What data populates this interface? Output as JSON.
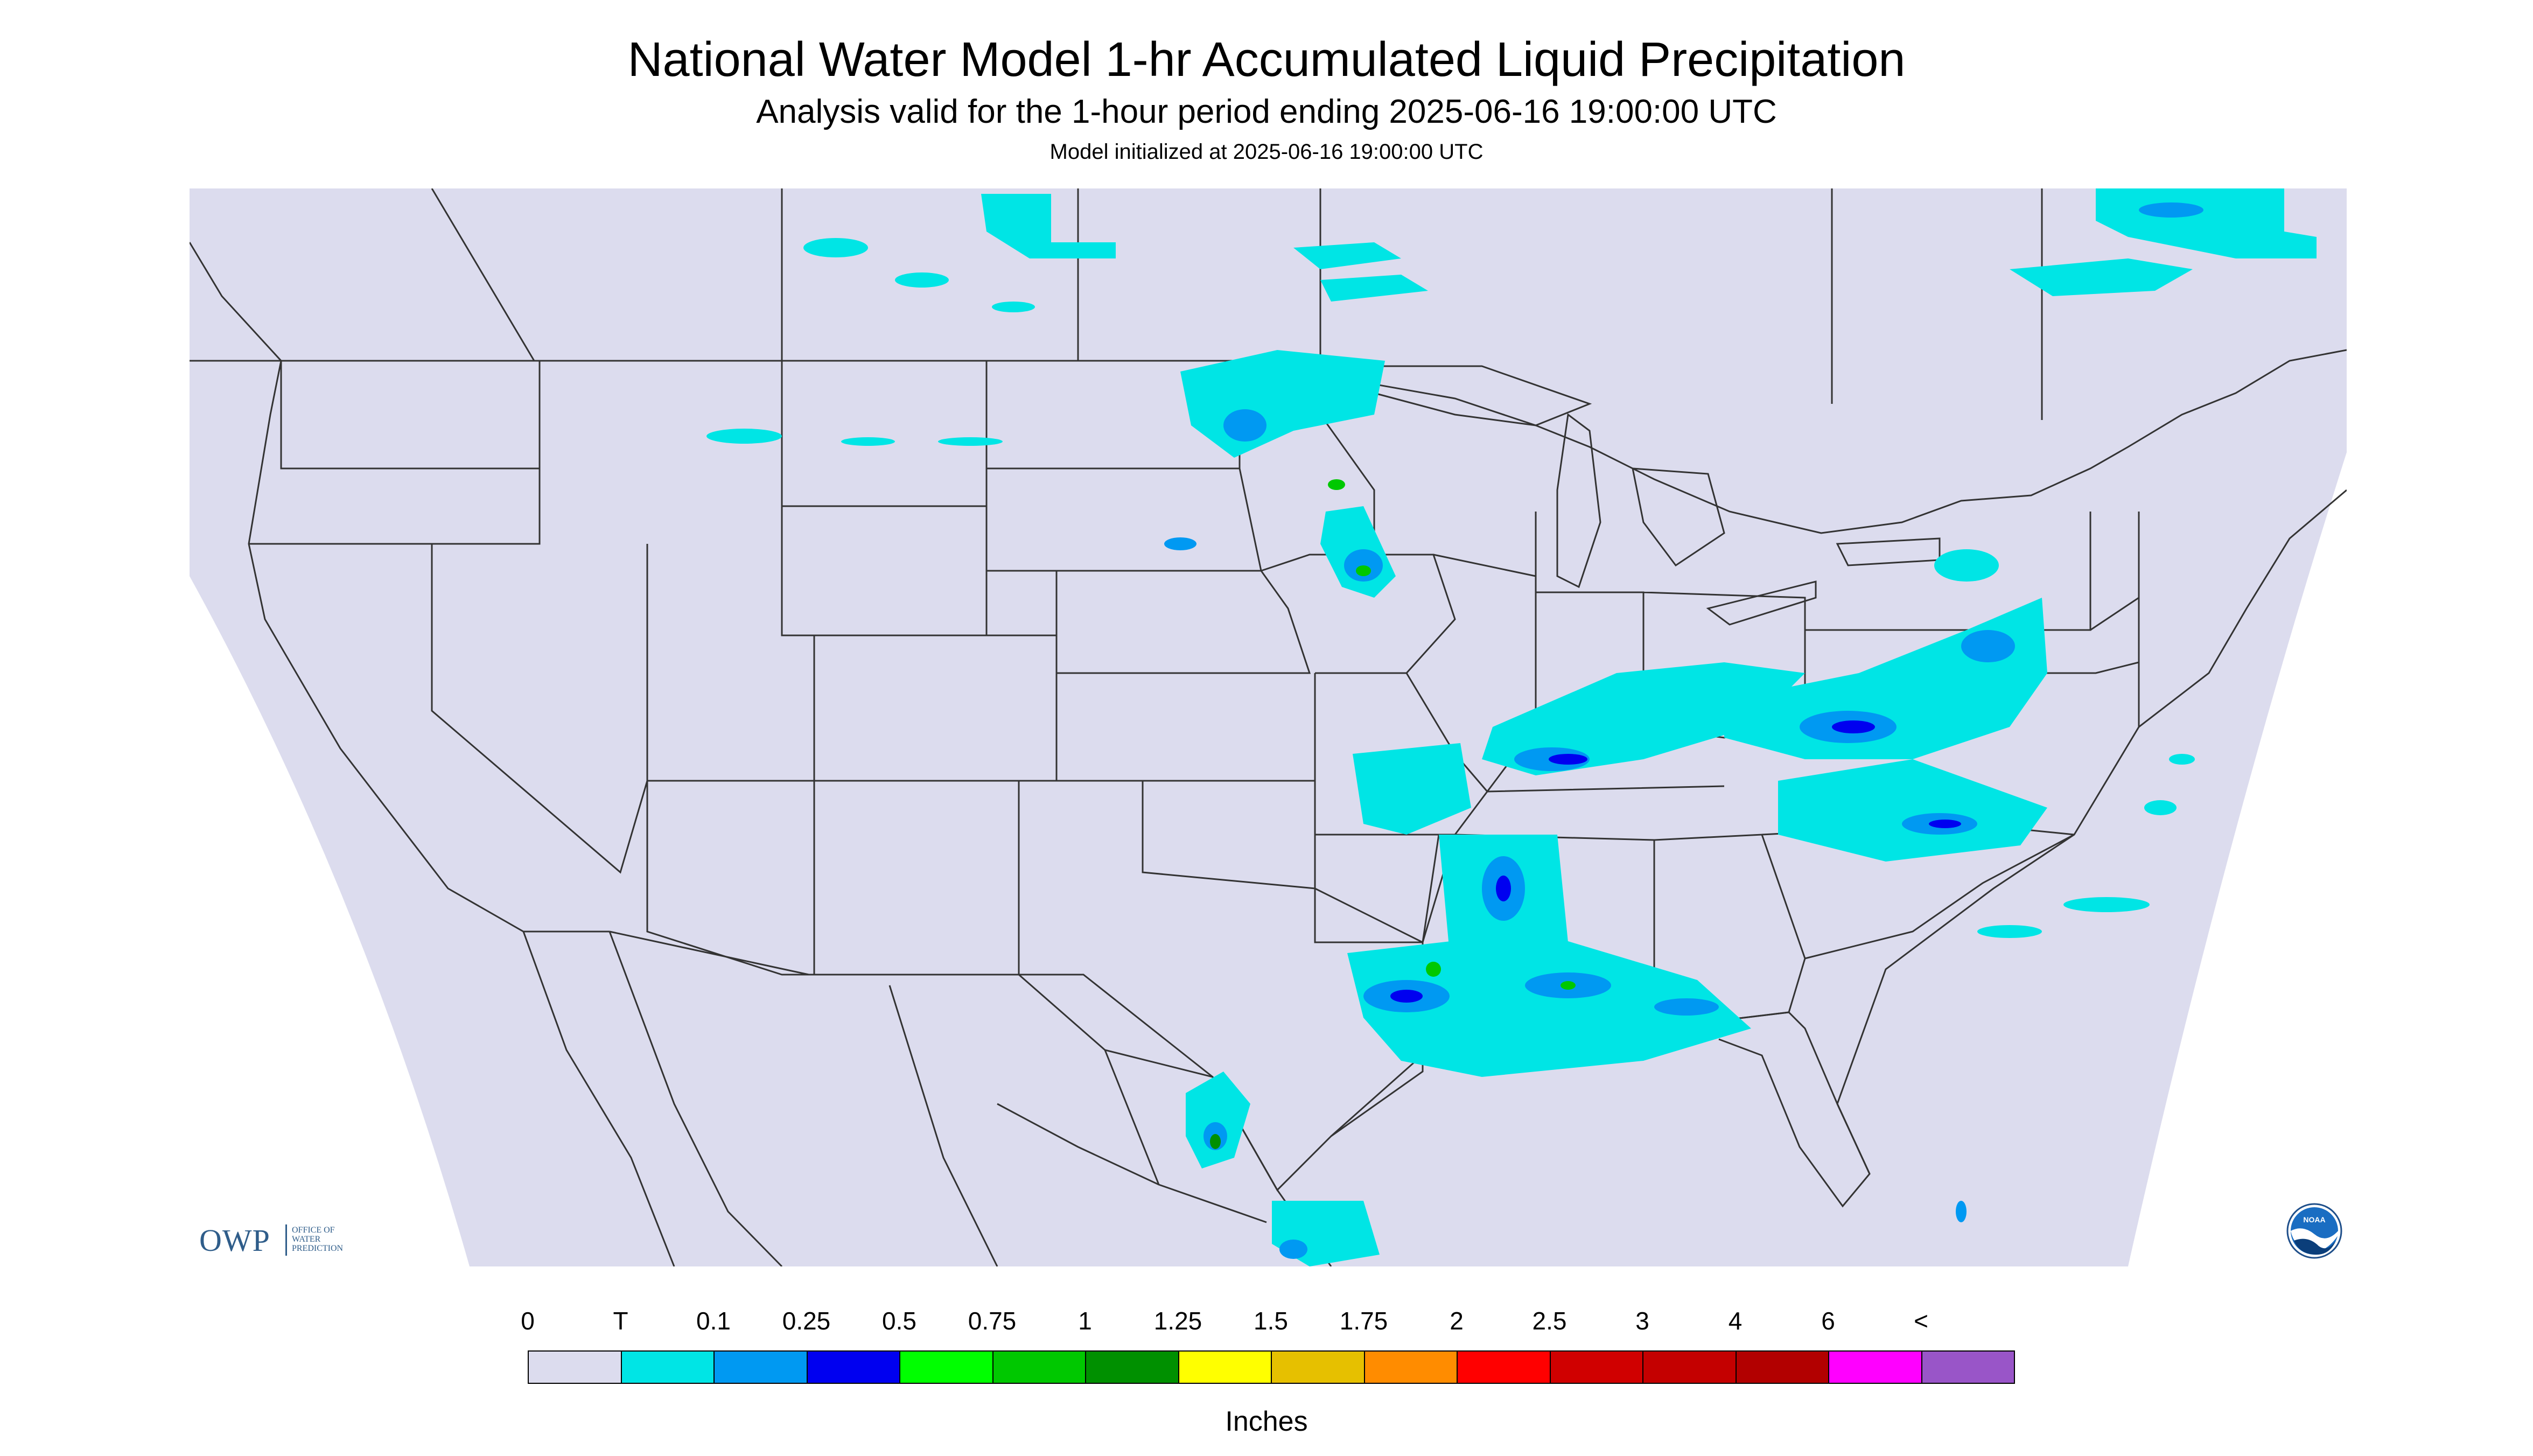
{
  "title": "National Water Model 1-hr Accumulated Liquid Precipitation",
  "subtitle": "Analysis valid for the 1-hour period ending 2025-06-16 19:00:00 UTC",
  "init": "Model initialized at 2025-06-16 19:00:00 UTC",
  "map": {
    "background_inside": "#dcdcee",
    "background_outside": "#ffffff",
    "boundary_color": "#333333"
  },
  "logos": {
    "owp_big": "OWP",
    "owp_small": [
      "OFFICE OF",
      "WATER",
      "PREDICTION"
    ],
    "noaa": "NOAA"
  },
  "legend": {
    "labels": [
      "0",
      "T",
      "0.1",
      "0.25",
      "0.5",
      "0.75",
      "1",
      "1.25",
      "1.5",
      "1.75",
      "2",
      "2.5",
      "3",
      "4",
      "6",
      "<"
    ],
    "colors": [
      "#dcdcee",
      "#00e5e5",
      "#0099f2",
      "#0000f0",
      "#00ff00",
      "#00c800",
      "#009000",
      "#ffff00",
      "#e6c000",
      "#ff8c00",
      "#ff0000",
      "#d00000",
      "#c40000",
      "#b20000",
      "#ff00ff",
      "#9955c8"
    ],
    "units": "Inches"
  },
  "precip_colors": {
    "trace": "#00e5e5",
    "light": "#0099f2",
    "moderate": "#0000f0",
    "green": "#00c800",
    "dark_green": "#009000"
  }
}
